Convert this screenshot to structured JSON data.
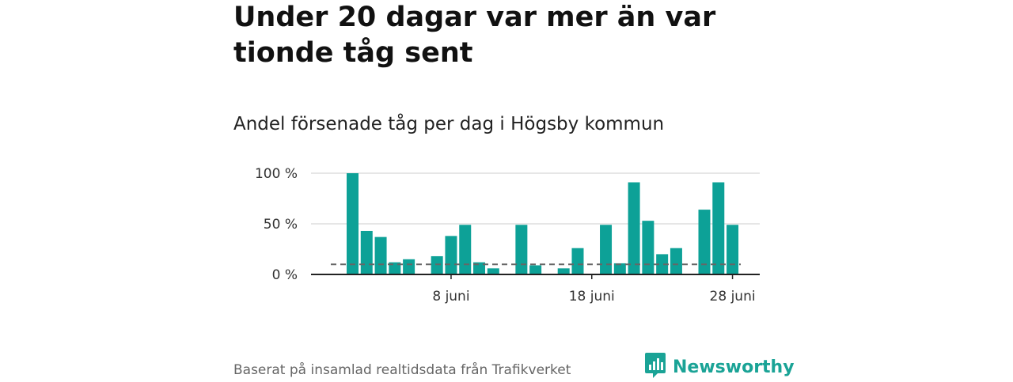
{
  "title": "Under 20 dagar var mer än var tionde tåg sent",
  "subtitle": "Andel försenade tåg per dag i Högsby kommun",
  "source": "Baserat på insamlad realtidsdata från Trafikverket",
  "brand": {
    "name": "Newsworthy",
    "icon": "bar-chart-speech-bubble-icon"
  },
  "colors": {
    "bar": "#0da197",
    "reference_line": "#666666",
    "grid": "#dddddd",
    "axis": "#222222",
    "brand": "#1aa396"
  },
  "chart_data": {
    "type": "bar",
    "title": "Andel försenade tåg per dag i Högsby kommun",
    "x_unit": "day of June",
    "x": [
      1,
      2,
      3,
      4,
      5,
      6,
      7,
      8,
      9,
      10,
      11,
      12,
      13,
      14,
      15,
      16,
      17,
      18,
      19,
      20,
      21,
      22,
      23,
      24,
      25,
      26,
      27,
      28,
      29,
      30
    ],
    "values": [
      100,
      43,
      37,
      12,
      15,
      0,
      18,
      38,
      49,
      12,
      6,
      0,
      49,
      9,
      0,
      6,
      26,
      0,
      49,
      11,
      91,
      53,
      20,
      26,
      0,
      64,
      91,
      49,
      null,
      null
    ],
    "reference_line": 10,
    "ylim": [
      0,
      100
    ],
    "y_ticks": [
      "0 %",
      "50 %",
      "100 %"
    ],
    "x_ticks": [
      {
        "day": 8,
        "label": "8 juni"
      },
      {
        "day": 18,
        "label": "18 juni"
      },
      {
        "day": 28,
        "label": "28 juni"
      }
    ],
    "grid": true,
    "legend": "none"
  }
}
